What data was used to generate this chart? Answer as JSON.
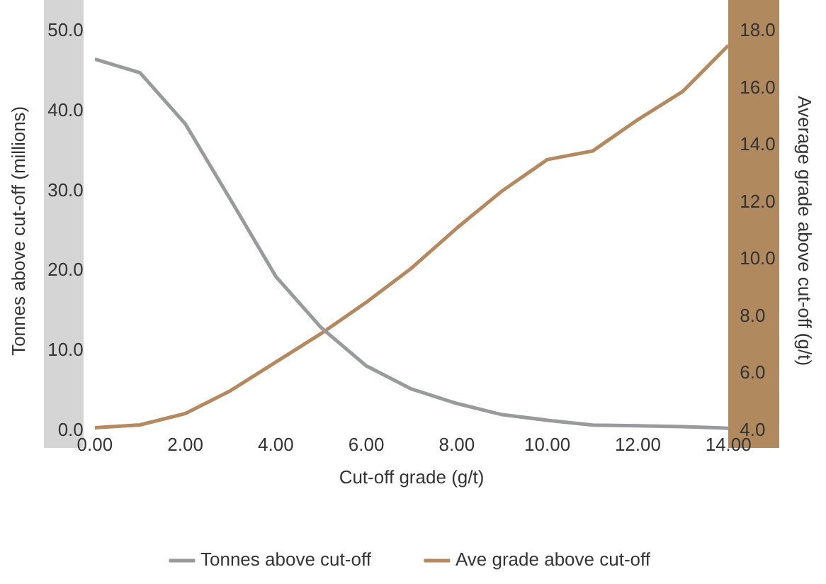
{
  "chart_data": {
    "type": "line",
    "xlabel": "Cut-off grade (g/t)",
    "ylabel": "Tonnes above cut-off (millions)",
    "y2label": "Average grade above cut-off (g/t)",
    "x": [
      0,
      1,
      2,
      3,
      4,
      5,
      6,
      7,
      8,
      9,
      10,
      11,
      12,
      13,
      14
    ],
    "series": [
      {
        "name": "Tonnes above cut-off",
        "color": "#999a9c",
        "values": [
          46.5,
          44.8,
          38.4,
          28.9,
          19.3,
          12.9,
          8.1,
          5.2,
          3.4,
          2.0,
          1.3,
          0.7,
          0.6,
          0.5,
          0.3
        ]
      },
      {
        "name": "Ave grade above cut-off",
        "color": "#b5895f",
        "axis": "y2",
        "values": [
          4.1,
          4.2,
          4.6,
          5.4,
          6.4,
          7.4,
          8.5,
          9.7,
          11.1,
          12.4,
          13.5,
          13.8,
          14.9,
          15.9,
          17.5
        ]
      }
    ],
    "xlim": [
      0,
      14
    ],
    "xticks": [
      {
        "value": 0,
        "label": "0.00"
      },
      {
        "value": 2,
        "label": "2.00"
      },
      {
        "value": 4,
        "label": "4.00"
      },
      {
        "value": 6,
        "label": "6.00"
      },
      {
        "value": 8,
        "label": "8.00"
      },
      {
        "value": 10,
        "label": "10.00"
      },
      {
        "value": 12,
        "label": "12.00"
      },
      {
        "value": 14,
        "label": "14.00"
      }
    ],
    "ylim": [
      0,
      50
    ],
    "yticks": [
      {
        "value": 0,
        "label": "0.0"
      },
      {
        "value": 10,
        "label": "10.0"
      },
      {
        "value": 20,
        "label": "20.0"
      },
      {
        "value": 30,
        "label": "30.0"
      },
      {
        "value": 40,
        "label": "40.0"
      },
      {
        "value": 50,
        "label": "50.0"
      }
    ],
    "y2lim": [
      4,
      18
    ],
    "y2ticks": [
      {
        "value": 4,
        "label": "4.0"
      },
      {
        "value": 6,
        "label": "6.0"
      },
      {
        "value": 8,
        "label": "8.0"
      },
      {
        "value": 10,
        "label": "10.0"
      },
      {
        "value": 12,
        "label": "12.0"
      },
      {
        "value": 14,
        "label": "14.0"
      },
      {
        "value": 16,
        "label": "16.0"
      },
      {
        "value": 18,
        "label": "18.0"
      }
    ],
    "grid": false,
    "legend": "bottom",
    "marker": "none",
    "line_style": "solid"
  }
}
